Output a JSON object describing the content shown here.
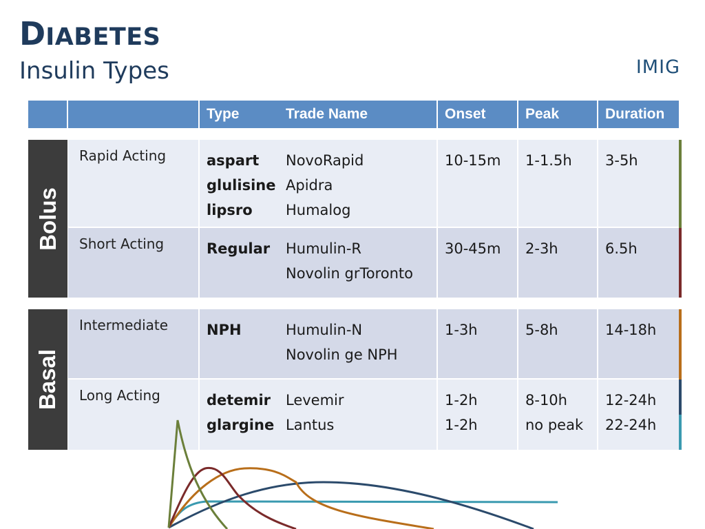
{
  "header": {
    "title_cap": "D",
    "title_rest": "IABETES",
    "subtitle": "Insulin Types",
    "logo": "IMIG"
  },
  "table": {
    "columns": {
      "type": "Type",
      "trade_name": "Trade Name",
      "onset": "Onset",
      "peak": "Peak",
      "duration": "Duration"
    },
    "groups": {
      "bolus": {
        "label": "Bolus",
        "rows": {
          "rapid": {
            "category": "Rapid Acting",
            "generic": [
              "aspart",
              "glulisine",
              "lipsro"
            ],
            "trade": [
              "NovoRapid",
              "Apidra",
              "Humalog"
            ],
            "onset": [
              "10-15m"
            ],
            "peak": [
              "1-1.5h"
            ],
            "duration": [
              "3-5h"
            ],
            "color": "#6b7f3a"
          },
          "short": {
            "category": "Short Acting",
            "generic": [
              "Regular"
            ],
            "trade": [
              "Humulin-R",
              "Novolin grToronto"
            ],
            "onset": [
              "30-45m"
            ],
            "peak": [
              "2-3h"
            ],
            "duration": [
              "6.5h"
            ],
            "color": "#7a2a2a"
          }
        }
      },
      "basal": {
        "label": "Basal",
        "rows": {
          "intermediate": {
            "category": "Intermediate",
            "generic": [
              "NPH"
            ],
            "trade": [
              "Humulin-N",
              "Novolin ge NPH"
            ],
            "onset": [
              "1-3h"
            ],
            "peak": [
              "5-8h"
            ],
            "duration": [
              "14-18h"
            ],
            "color": "#b86e1a"
          },
          "long": {
            "category": "Long Acting",
            "generic": [
              "detemir",
              "glargine"
            ],
            "trade": [
              "Levemir",
              "Lantus"
            ],
            "onset": [
              "1-2h",
              "1-2h"
            ],
            "peak": [
              "8-10h",
              "no peak"
            ],
            "duration": [
              "12-24h",
              "22-24h"
            ],
            "color_detemir": "#2b4a6b",
            "color_glargine": "#3a9ab0"
          }
        }
      }
    }
  },
  "colors": {
    "title": "#1f3b5c",
    "header_bg": "#5b8cc4",
    "group_label_bg": "#3c3c3c",
    "row_light": "#e9edf5",
    "row_dark": "#d4d9e8"
  },
  "curve_icon": "insulin-action-curves"
}
